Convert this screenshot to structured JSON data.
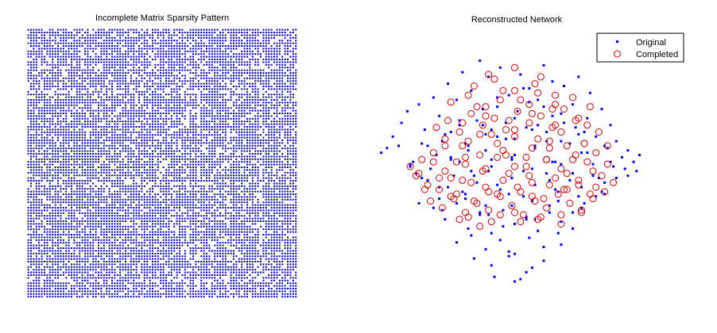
{
  "chart_data": [
    {
      "type": "heatmap",
      "title": "Incomplete Matrix Sparsity Pattern",
      "xlabel": "",
      "ylabel": "",
      "grid": false,
      "matrix_size": 100,
      "observed_fraction": 0.82,
      "marker_color": "#0000cc"
    },
    {
      "type": "scatter",
      "title": "Reconstructed Network",
      "xlabel": "",
      "ylabel": "",
      "grid": false,
      "axes_visible": false,
      "legend_position": "top-right",
      "xlim": [
        -5,
        5
      ],
      "ylim": [
        -5,
        5
      ],
      "series": [
        {
          "name": "Original",
          "marker": "dot",
          "color": "#0000ff",
          "x": [
            -4.6,
            -4.4,
            -4.2,
            -3.9,
            -3.7,
            -3.5,
            -3.3,
            -3.1,
            -3.0,
            -2.8,
            -2.6,
            -2.5,
            -2.3,
            -2.2,
            -2.0,
            -1.9,
            -1.8,
            -1.6,
            -1.5,
            -1.3,
            -1.2,
            -1.0,
            -0.9,
            -0.8,
            -0.6,
            -0.5,
            -0.3,
            -0.2,
            0.0,
            0.1,
            0.2,
            0.4,
            0.5,
            0.7,
            0.8,
            1.0,
            1.1,
            1.3,
            1.4,
            1.6,
            1.7,
            1.9,
            2.0,
            2.2,
            2.3,
            2.5,
            2.6,
            2.8,
            3.0,
            3.1,
            3.3,
            3.5,
            3.7,
            3.9,
            4.1,
            4.3,
            -3.4,
            -3.0,
            -2.6,
            -2.1,
            -1.7,
            -1.3,
            -0.9,
            -0.5,
            -0.1,
            0.3,
            0.7,
            1.1,
            1.5,
            1.9,
            2.3,
            2.7,
            3.1,
            3.5,
            -2.8,
            -2.4,
            -2.0,
            -1.6,
            -1.2,
            -0.8,
            -0.4,
            0.0,
            0.4,
            0.8,
            1.2,
            1.6,
            2.0,
            2.4,
            2.8,
            -2.0,
            -1.5,
            -1.0,
            -0.5,
            0.0,
            0.5,
            1.0,
            1.5,
            2.0,
            -1.4,
            -0.8,
            -0.2,
            0.4,
            1.0,
            1.6,
            -0.7,
            0.0,
            0.6,
            -0.2,
            0.2,
            -3.6,
            -2.9,
            -2.2,
            -1.5,
            -0.8,
            -0.1,
            0.6,
            1.3,
            2.0,
            2.7,
            3.4,
            -3.2,
            -2.4,
            -1.6,
            -0.8,
            0.0,
            0.8,
            1.6,
            2.4,
            3.2,
            -2.6,
            -1.8,
            -1.0,
            -0.2,
            0.6,
            1.4,
            2.2,
            3.0,
            -1.9,
            -1.1,
            -0.3,
            0.5,
            1.3,
            2.1,
            -1.2,
            -0.4,
            0.4,
            1.2,
            -0.6,
            0.3,
            1.0,
            -4.0,
            -3.6,
            -3.2,
            -2.7,
            -2.3,
            -1.9,
            -1.4,
            -1.0,
            -0.6,
            -0.1,
            0.3,
            0.7,
            1.2,
            1.6,
            2.0,
            2.5,
            2.9,
            3.3,
            3.8,
            4.2,
            -2.2,
            -1.7,
            -1.1,
            -0.6,
            0.0,
            0.6,
            1.1,
            1.7,
            2.2,
            -3.3,
            -2.5,
            -1.7,
            -0.9,
            -0.1,
            0.7,
            1.5,
            2.3,
            3.1,
            3.9
          ],
          "y": [
            0.6,
            0.8,
            1.3,
            1.9,
            2.4,
            0.2,
            2.7,
            1.6,
            0.9,
            3.0,
            2.2,
            1.1,
            3.6,
            0.4,
            2.9,
            1.8,
            4.1,
            0.7,
            3.3,
            2.0,
            4.6,
            1.4,
            3.9,
            0.3,
            2.6,
            4.3,
            1.2,
            3.1,
            0.5,
            2.4,
            4.0,
            1.7,
            3.4,
            0.8,
            2.9,
            4.4,
            1.5,
            3.7,
            0.2,
            2.3,
            3.5,
            1.0,
            2.7,
            3.9,
            0.6,
            2.1,
            3.2,
            1.3,
            2.5,
            0.9,
            1.8,
            1.1,
            0.4,
            0.7,
            0.2,
            0.5,
            -0.3,
            -0.6,
            -0.9,
            -0.4,
            -1.2,
            -0.7,
            -0.2,
            -1.0,
            -0.5,
            -1.3,
            -0.8,
            -0.3,
            -1.1,
            -0.6,
            -0.9,
            -0.4,
            -0.7,
            -0.5,
            -1.8,
            -2.3,
            -1.6,
            -2.7,
            -2.0,
            -2.9,
            -1.9,
            -2.5,
            -2.2,
            -2.8,
            -1.7,
            -2.4,
            -2.0,
            -1.6,
            -1.3,
            -3.3,
            -3.0,
            -3.6,
            -3.2,
            -3.8,
            -3.1,
            -3.5,
            -2.9,
            -2.7,
            -4.0,
            -4.3,
            -3.9,
            -4.6,
            -4.1,
            -3.4,
            -4.8,
            -5.0,
            -4.4,
            -3.7,
            -4.9,
            0.1,
            -0.1,
            0.3,
            -0.2,
            0.0,
            0.4,
            -0.1,
            0.2,
            -0.3,
            0.1,
            0.0,
            1.0,
            1.4,
            0.9,
            1.6,
            1.2,
            1.8,
            1.1,
            1.5,
            0.8,
            -1.4,
            -1.1,
            -1.7,
            -1.2,
            -1.5,
            -1.0,
            -1.3,
            -1.1,
            2.0,
            2.5,
            1.9,
            2.8,
            2.2,
            1.7,
            -2.1,
            -2.6,
            -2.3,
            -2.0,
            3.0,
            3.4,
            2.6,
            0.9,
            0.0,
            -0.5,
            0.5,
            -0.9,
            0.2,
            -0.4,
            0.7,
            -0.8,
            0.3,
            -0.2,
            0.9,
            -0.6,
            0.1,
            -0.3,
            0.6,
            -0.5,
            0.2,
            -0.1,
            -0.2,
            1.5,
            1.0,
            1.8,
            1.3,
            2.1,
            1.6,
            1.1,
            1.9,
            1.4,
            -1.6,
            -1.9,
            -1.4,
            -2.1,
            -1.7,
            -2.3,
            -1.5,
            -1.8,
            -1.2,
            -0.4
          ]
        },
        {
          "name": "Completed",
          "marker": "circle",
          "color": "#dd0000",
          "x": [
            -3.6,
            -3.4,
            -3.2,
            -3.0,
            -2.8,
            -2.6,
            -2.4,
            -2.2,
            -2.0,
            -1.8,
            -1.6,
            -1.4,
            -1.2,
            -1.0,
            -0.8,
            -0.6,
            -0.4,
            -0.2,
            0.0,
            0.2,
            0.4,
            0.6,
            0.8,
            1.0,
            1.2,
            1.4,
            1.6,
            1.8,
            2.0,
            2.2,
            2.4,
            2.6,
            2.8,
            3.0,
            3.2,
            3.4,
            -2.9,
            -2.5,
            -2.1,
            -1.7,
            -1.3,
            -0.9,
            -0.5,
            -0.1,
            0.3,
            0.7,
            1.1,
            1.5,
            1.9,
            2.3,
            2.7,
            3.1,
            -2.7,
            -2.3,
            -1.9,
            -1.5,
            -1.1,
            -0.7,
            -0.3,
            0.1,
            0.5,
            0.9,
            1.3,
            1.7,
            2.1,
            2.5,
            2.9,
            -2.2,
            -1.6,
            -1.0,
            -0.4,
            0.2,
            0.8,
            1.4,
            2.0,
            2.6,
            -1.9,
            -1.2,
            -0.5,
            0.2,
            0.9,
            1.6,
            2.3,
            -2.4,
            -1.7,
            -1.0,
            -0.3,
            0.4,
            1.1,
            1.8,
            2.5,
            -1.4,
            -0.7,
            0.0,
            0.7,
            1.4,
            -0.9,
            0.0,
            0.9,
            -3.1,
            -2.6,
            -2.0,
            -1.5,
            -0.9,
            -0.4,
            0.1,
            0.6,
            1.2,
            1.7,
            2.2,
            2.8,
            -2.4,
            -1.8,
            -1.2,
            -0.6,
            0.0,
            0.6,
            1.2,
            1.8,
            2.4,
            -1.6,
            -0.8,
            0.0,
            0.8,
            1.6,
            -1.3,
            -0.5,
            0.5,
            1.3,
            -3.3,
            -2.8,
            -2.2,
            -1.7,
            -1.1,
            -0.6,
            0.0,
            0.5,
            1.1,
            1.6,
            2.1,
            2.7,
            3.2,
            -1.8,
            -1.0,
            -0.2,
            0.6,
            1.4,
            2.2
          ],
          "y": [
            0.0,
            -0.4,
            0.3,
            -0.8,
            0.6,
            -1.0,
            0.9,
            -1.3,
            0.2,
            -0.6,
            1.1,
            -1.5,
            0.5,
            -0.9,
            1.4,
            -1.2,
            0.7,
            -0.3,
            1.6,
            -1.1,
            0.4,
            -0.7,
            1.2,
            -1.4,
            0.8,
            -0.5,
            1.5,
            -1.0,
            0.3,
            -0.8,
            1.0,
            -1.2,
            0.6,
            -0.4,
            0.9,
            -0.7,
            -1.5,
            -1.8,
            -1.4,
            -2.0,
            -1.6,
            -1.9,
            -1.3,
            -1.7,
            -2.1,
            -1.5,
            -1.8,
            -1.2,
            -1.6,
            -1.9,
            -1.4,
            -1.1,
            1.7,
            2.0,
            1.5,
            2.3,
            1.8,
            2.1,
            1.6,
            2.4,
            1.9,
            2.2,
            1.7,
            2.5,
            2.0,
            1.8,
            1.5,
            2.8,
            3.1,
            2.6,
            3.3,
            2.9,
            3.2,
            2.7,
            3.0,
            2.6,
            -2.3,
            -2.6,
            -2.1,
            -2.4,
            -2.2,
            -2.5,
            -2.0,
            -0.2,
            0.4,
            -0.1,
            0.5,
            0.0,
            0.3,
            -0.3,
            0.2,
            3.5,
            3.8,
            3.3,
            3.6,
            3.1,
            4.0,
            4.3,
            3.9,
            -1.0,
            -0.5,
            -1.2,
            -0.7,
            -1.1,
            -0.6,
            -0.9,
            -1.3,
            -0.8,
            -1.0,
            -0.6,
            -0.9,
            1.2,
            0.9,
            1.4,
            1.0,
            1.3,
            0.8,
            1.1,
            0.9,
            1.0,
            -2.2,
            -2.4,
            -2.0,
            -2.3,
            -2.1,
            2.6,
            2.9,
            2.7,
            2.5,
            -0.3,
            0.2,
            -0.5,
            0.1,
            -0.2,
            0.4,
            0.0,
            -0.4,
            0.3,
            -0.1,
            0.5,
            -0.2,
            0.1,
            1.9,
            2.2,
            2.0,
            2.3,
            1.8,
            2.1
          ]
        }
      ]
    }
  ]
}
